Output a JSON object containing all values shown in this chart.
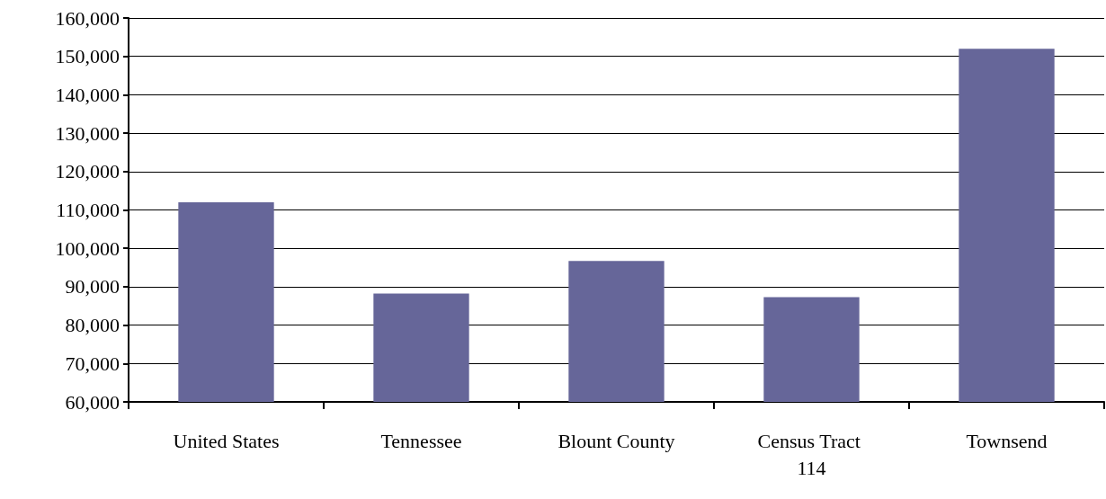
{
  "chart_data": {
    "type": "bar",
    "categories": [
      "United States",
      "Tennessee",
      "Blount County",
      "Census Tract 114",
      "Townsend"
    ],
    "values": [
      112000,
      88200,
      96700,
      87300,
      152000
    ],
    "color": "#666699",
    "ylim": [
      60000,
      160000
    ],
    "yticks": [
      {
        "value": 60000,
        "label": "60,000"
      },
      {
        "value": 70000,
        "label": "70,000"
      },
      {
        "value": 80000,
        "label": "80,000"
      },
      {
        "value": 90000,
        "label": "90,000"
      },
      {
        "value": 100000,
        "label": "100,000"
      },
      {
        "value": 110000,
        "label": "110,000"
      },
      {
        "value": 120000,
        "label": "120,000"
      },
      {
        "value": 130000,
        "label": "130,000"
      },
      {
        "value": 140000,
        "label": "140,000"
      },
      {
        "value": 150000,
        "label": "150,000"
      },
      {
        "value": 160000,
        "label": "160,000"
      }
    ],
    "grid": "y"
  }
}
